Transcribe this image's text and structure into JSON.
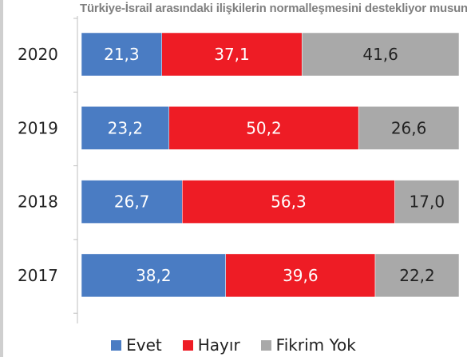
{
  "colors": {
    "evet": "#4a7cc3",
    "hayir": "#ee1c25",
    "fikrim_yok": "#a9a9a9"
  },
  "chart_data": {
    "type": "bar",
    "orientation": "horizontal-stacked-100",
    "title": "Türkiye-İsrail arasındaki ilişkilerin normalleşmesini destekliyor musunuz?",
    "categories": [
      "2020",
      "2019",
      "2018",
      "2017"
    ],
    "series": [
      {
        "name": "Evet",
        "values": [
          "21,3",
          "23,2",
          "26,7",
          "38,2"
        ],
        "color": "#4a7cc3"
      },
      {
        "name": "Hayır",
        "values": [
          "37,1",
          "50,2",
          "56,3",
          "39,6"
        ],
        "color": "#ee1c25"
      },
      {
        "name": "Fikrim Yok",
        "values": [
          "41,6",
          "26,6",
          "17,0",
          "22,2"
        ],
        "color": "#a9a9a9"
      }
    ],
    "xlim": [
      0,
      100
    ],
    "legend_position": "bottom"
  }
}
